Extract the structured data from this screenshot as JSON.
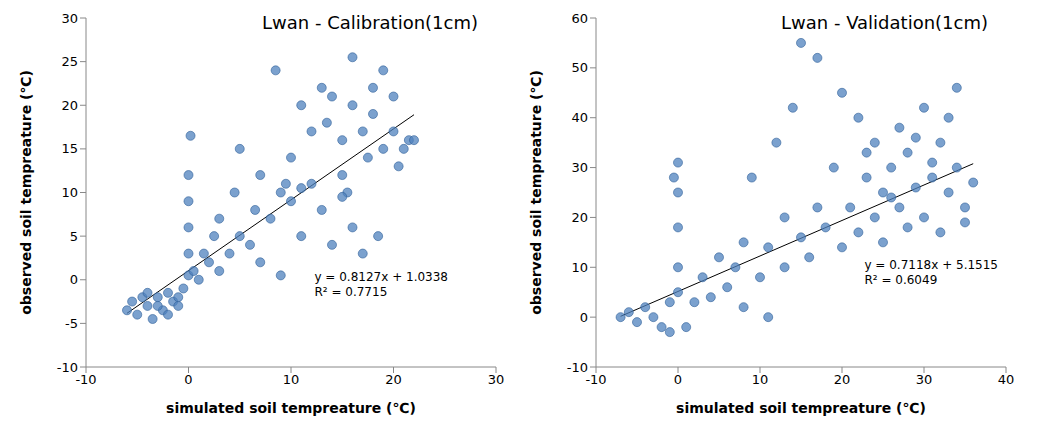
{
  "chart_data": [
    {
      "type": "scatter",
      "title": "Lwan - Calibration(1cm)",
      "x_label": "simulated soil tempreature (℃)",
      "y_label": "observed soil tempreature (℃)",
      "color": "#4f81bd",
      "marker": "circle",
      "xlim": [
        -10,
        30
      ],
      "xticks": [
        -10,
        0,
        10,
        20,
        30
      ],
      "ylim": [
        -10,
        30
      ],
      "yticks": [
        -10,
        -5,
        0,
        5,
        10,
        15,
        20,
        25,
        30
      ],
      "grid": false,
      "x": [
        -6,
        -5.5,
        -5,
        -4.5,
        -4,
        -3.5,
        -3,
        -2.5,
        -2,
        -1.5,
        -1,
        -0.5,
        -4,
        -3,
        -2,
        -1,
        0,
        0,
        0,
        0,
        0,
        0.2,
        0.5,
        1,
        1.5,
        2,
        2.5,
        3,
        3,
        4,
        4.5,
        5,
        5,
        6,
        6.5,
        7,
        7,
        8,
        8.5,
        9,
        9,
        10,
        10,
        11,
        11,
        12,
        12,
        13,
        13,
        14,
        14,
        15,
        15,
        15.5,
        16,
        16,
        16,
        17,
        17,
        17.5,
        18,
        18,
        18.5,
        19,
        19,
        20,
        20,
        20.5,
        21,
        21.5,
        22,
        13.5,
        11,
        9.5,
        15
      ],
      "values": [
        -3.5,
        -2.5,
        -4,
        -2,
        -3,
        -4.5,
        -2,
        -3.5,
        -1.5,
        -2.5,
        -3,
        -1,
        -1.5,
        -3,
        -4,
        -2,
        0.5,
        3,
        6,
        9,
        12,
        16.5,
        1,
        0,
        3,
        2,
        5,
        1,
        7,
        3,
        10,
        5,
        15,
        4,
        8,
        2,
        12,
        7,
        24,
        10,
        0.5,
        9,
        14,
        5,
        20,
        11,
        17,
        8,
        22,
        21,
        4,
        16,
        12,
        10,
        25.5,
        20,
        6,
        17,
        3,
        14,
        22,
        19,
        5,
        15,
        24,
        17,
        21,
        13,
        15,
        16,
        16,
        18,
        10.5,
        11,
        9.5
      ],
      "trendline": {
        "slope": 0.8127,
        "intercept": 1.0338,
        "color": "#000000"
      },
      "annotations": [
        "y = 0.8127x + 1.0338",
        "R² = 0.7715"
      ]
    },
    {
      "type": "scatter",
      "title": "Lwan - Validation(1cm)",
      "x_label": "simulated soil tempreature (℃)",
      "y_label": "observed soil tempreature (℃)",
      "color": "#4f81bd",
      "marker": "circle",
      "xlim": [
        -10,
        40
      ],
      "xticks": [
        -10,
        0,
        10,
        20,
        30,
        40
      ],
      "ylim": [
        -10,
        60
      ],
      "yticks": [
        -10,
        0,
        10,
        20,
        30,
        40,
        50,
        60
      ],
      "grid": false,
      "x": [
        -7,
        -6,
        -5,
        -4,
        -3,
        -2,
        -1,
        -1,
        0,
        0,
        0,
        0,
        0,
        -0.5,
        1,
        2,
        3,
        4,
        5,
        6,
        7,
        8,
        8,
        9,
        10,
        11,
        11,
        12,
        13,
        13,
        14,
        15,
        15,
        16,
        17,
        17,
        18,
        19,
        20,
        20,
        21,
        22,
        22,
        23,
        24,
        24,
        25,
        25,
        26,
        27,
        27,
        28,
        28,
        29,
        30,
        30,
        31,
        32,
        32,
        33,
        34,
        34,
        35,
        35,
        36,
        31,
        26,
        23,
        29,
        33
      ],
      "values": [
        0,
        1,
        -1,
        2,
        0,
        -2,
        3,
        -3,
        5,
        10,
        18,
        25,
        31,
        28,
        -2,
        3,
        8,
        4,
        12,
        6,
        10,
        2,
        15,
        28,
        8,
        0,
        14,
        35,
        10,
        20,
        42,
        16,
        55,
        12,
        52,
        22,
        18,
        30,
        14,
        45,
        22,
        40,
        17,
        28,
        20,
        35,
        15,
        25,
        30,
        22,
        38,
        18,
        33,
        26,
        42,
        20,
        28,
        35,
        17,
        25,
        30,
        46,
        22,
        19,
        27,
        31,
        24,
        33,
        36,
        40
      ],
      "trendline": {
        "slope": 0.7118,
        "intercept": 5.1515,
        "color": "#000000"
      },
      "annotations": [
        "y = 0.7118x + 5.1515",
        "R² = 0.6049"
      ]
    }
  ]
}
